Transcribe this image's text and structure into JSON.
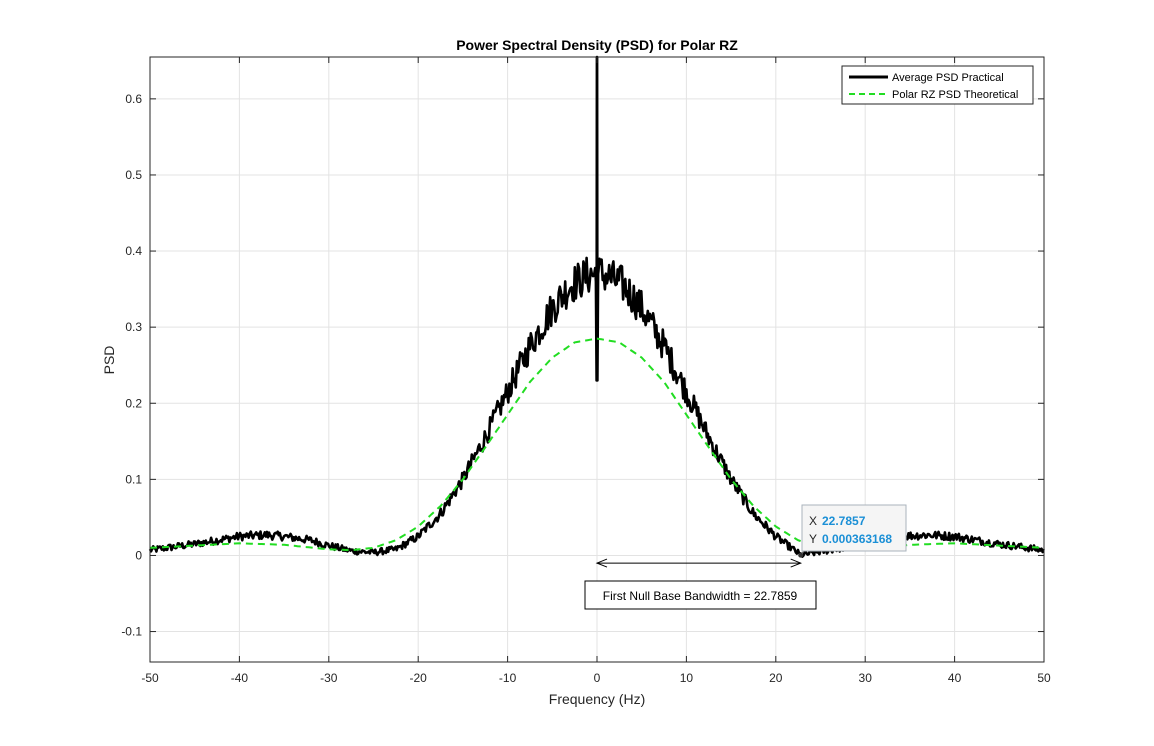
{
  "chart_data": {
    "type": "line",
    "title": "Power Spectral Density (PSD) for Polar RZ",
    "xlabel": "Frequency (Hz)",
    "ylabel": "PSD",
    "xlim": [
      -50,
      50
    ],
    "ylim": [
      -0.14,
      0.655
    ],
    "grid": true,
    "x_ticks": [
      -50,
      -40,
      -30,
      -20,
      -10,
      0,
      10,
      20,
      30,
      40,
      50
    ],
    "y_ticks": [
      -0.1,
      0,
      0.1,
      0.2,
      0.3,
      0.4,
      0.5,
      0.6
    ],
    "x_tick_labels": [
      "-50",
      "-40",
      "-30",
      "-20",
      "-10",
      "0",
      "10",
      "20",
      "30",
      "40",
      "50"
    ],
    "y_tick_labels": [
      "-0.1",
      "0",
      "0.1",
      "0.2",
      "0.3",
      "0.4",
      "0.5",
      "0.6"
    ],
    "legend_position": "top-right",
    "series": [
      {
        "name": "Average PSD Practical",
        "color": "#000000",
        "style": "solid",
        "x": [
          -50,
          -45,
          -40,
          -37,
          -35,
          -32,
          -30,
          -27.5,
          -25,
          -22.5,
          -20,
          -17.5,
          -15,
          -12.5,
          -10,
          -7.5,
          -5,
          -3,
          -1,
          -0.3,
          0,
          0.3,
          1,
          3,
          5,
          7.5,
          10,
          12.5,
          15,
          17.5,
          20,
          22.8,
          25,
          27.5,
          30,
          32,
          35,
          37,
          40,
          45,
          50
        ],
        "y": [
          0.007,
          0.015,
          0.025,
          0.027,
          0.025,
          0.02,
          0.013,
          0.006,
          0.004,
          0.008,
          0.025,
          0.055,
          0.1,
          0.155,
          0.215,
          0.275,
          0.325,
          0.355,
          0.368,
          0.37,
          0.65,
          0.37,
          0.368,
          0.355,
          0.325,
          0.275,
          0.215,
          0.155,
          0.1,
          0.055,
          0.025,
          0.0004,
          0.005,
          0.01,
          0.016,
          0.022,
          0.026,
          0.027,
          0.025,
          0.015,
          0.007
        ],
        "annotations_note": "Sharp spike at x=0 reaching ~0.65 and dipping to ~0.23"
      },
      {
        "name": "Polar RZ PSD Theoretical",
        "color": "#22dd22",
        "style": "dashed",
        "x": [
          -50,
          -45,
          -40,
          -35,
          -30,
          -27.5,
          -25,
          -22.5,
          -20,
          -17.5,
          -15,
          -12.5,
          -10,
          -7.5,
          -5,
          -2.5,
          0,
          2.5,
          5,
          7.5,
          10,
          12.5,
          15,
          17.5,
          20,
          22.5,
          25,
          27.5,
          30,
          35,
          40,
          45,
          50
        ],
        "y": [
          0.01,
          0.013,
          0.016,
          0.014,
          0.008,
          0.007,
          0.01,
          0.02,
          0.038,
          0.065,
          0.1,
          0.142,
          0.185,
          0.228,
          0.26,
          0.28,
          0.285,
          0.28,
          0.26,
          0.228,
          0.185,
          0.142,
          0.1,
          0.065,
          0.038,
          0.02,
          0.01,
          0.007,
          0.008,
          0.014,
          0.016,
          0.013,
          0.01
        ]
      }
    ],
    "datatip": {
      "x_label": "X",
      "x_value": "22.7857",
      "y_label": "Y",
      "y_value": "0.000363168",
      "x": 22.7857,
      "y": 0.000363168
    },
    "bandwidth_annotation": {
      "text": "First Null Base Bandwidth = 22.7859",
      "x_start": 0,
      "x_end": 22.7859,
      "y": -0.01
    }
  }
}
